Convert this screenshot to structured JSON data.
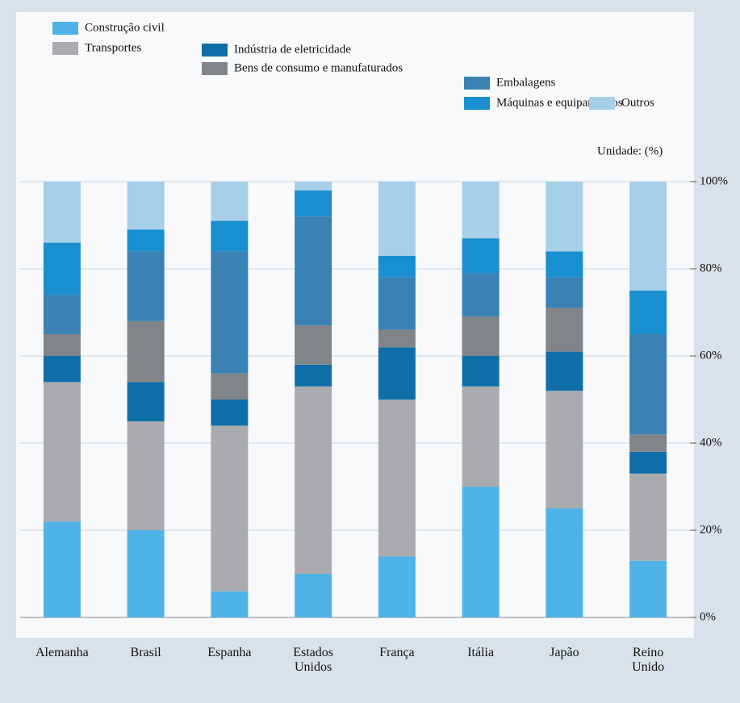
{
  "chart_data": {
    "type": "stacked_bar",
    "annotation": "Unidade: (%)",
    "categories": [
      "Alemanha",
      "Brasil",
      "Espanha",
      "Estados Unidos",
      "França",
      "Itália",
      "Japão",
      "Reino Unido"
    ],
    "series": [
      {
        "name": "Construção civil",
        "color": "#4fb3e8",
        "values": [
          22,
          20,
          6,
          10,
          14,
          30,
          25,
          13
        ]
      },
      {
        "name": "Transportes",
        "color": "#a9abae",
        "values": [
          32,
          25,
          38,
          43,
          36,
          23,
          27,
          20
        ]
      },
      {
        "name": "Indústria de eletricidade",
        "color": "#0f6ea8",
        "values": [
          6,
          9,
          6,
          5,
          12,
          7,
          9,
          5
        ]
      },
      {
        "name": "Bens de consumo e manufaturados",
        "color": "#818589",
        "values": [
          5,
          14,
          6,
          9,
          4,
          9,
          10,
          4
        ]
      },
      {
        "name": "Embalagens",
        "color": "#3a82b4",
        "values": [
          9,
          16,
          28,
          25,
          12,
          10,
          7,
          23
        ]
      },
      {
        "name": "Máquinas e equipamentos",
        "color": "#1a8fd0",
        "values": [
          12,
          5,
          7,
          6,
          5,
          8,
          6,
          10
        ]
      },
      {
        "name": "Outros",
        "color": "#a8cfe8",
        "values": [
          14,
          11,
          9,
          2,
          17,
          13,
          16,
          25
        ]
      }
    ],
    "ylim": [
      0,
      100
    ],
    "yticks": [
      {
        "value": 0,
        "label": "0%"
      },
      {
        "value": 20,
        "label": "20%"
      },
      {
        "value": 40,
        "label": "40%"
      },
      {
        "value": 60,
        "label": "60%"
      },
      {
        "value": 80,
        "label": "80%"
      },
      {
        "value": 100,
        "label": "100%"
      }
    ],
    "grid": true
  }
}
